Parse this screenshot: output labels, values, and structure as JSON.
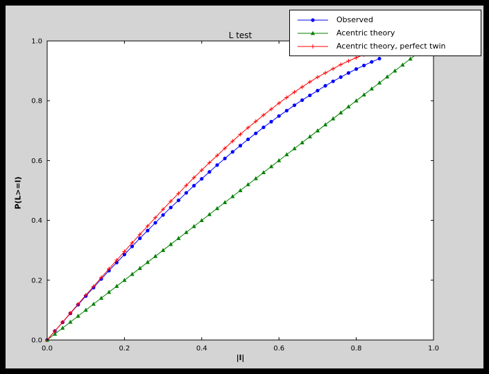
{
  "window": {
    "border_color": "#000000",
    "figure_facecolor": "#d4d4d4",
    "axes_facecolor": "#ffffff"
  },
  "chart_data": {
    "type": "line",
    "title": "L test",
    "xlabel": "|l|",
    "ylabel": "P(L>=l)",
    "xlim": [
      0.0,
      1.0
    ],
    "ylim": [
      0.0,
      1.0
    ],
    "xticks": [
      "0.0",
      "0.2",
      "0.4",
      "0.6",
      "0.8",
      "1.0"
    ],
    "yticks": [
      "0.0",
      "0.2",
      "0.4",
      "0.6",
      "0.8",
      "1.0"
    ],
    "grid": false,
    "legend_position": "upper right",
    "series": [
      {
        "name": "Observed",
        "key": "observed",
        "color": "#0000ff",
        "marker": "circle",
        "x": [
          0.0,
          0.02,
          0.04,
          0.06,
          0.08,
          0.1,
          0.12,
          0.14,
          0.16,
          0.18,
          0.2,
          0.22,
          0.24,
          0.26,
          0.28,
          0.3,
          0.32,
          0.34,
          0.36,
          0.38,
          0.4,
          0.42,
          0.44,
          0.46,
          0.48,
          0.5,
          0.52,
          0.54,
          0.56,
          0.58,
          0.6,
          0.62,
          0.64,
          0.66,
          0.68,
          0.7,
          0.72,
          0.74,
          0.76,
          0.78,
          0.8,
          0.82,
          0.84,
          0.86
        ],
        "y": [
          0.0,
          0.03,
          0.059,
          0.089,
          0.118,
          0.147,
          0.175,
          0.204,
          0.232,
          0.259,
          0.286,
          0.313,
          0.34,
          0.366,
          0.392,
          0.418,
          0.443,
          0.467,
          0.492,
          0.516,
          0.539,
          0.562,
          0.585,
          0.607,
          0.629,
          0.65,
          0.671,
          0.691,
          0.711,
          0.73,
          0.749,
          0.767,
          0.785,
          0.802,
          0.818,
          0.834,
          0.85,
          0.865,
          0.879,
          0.893,
          0.906,
          0.918,
          0.93,
          0.941
        ]
      },
      {
        "name": "Acentric theory",
        "key": "acentric-theory",
        "color": "#008000",
        "marker": "triangle_up",
        "x": [
          0.0,
          0.02,
          0.04,
          0.06,
          0.08,
          0.1,
          0.12,
          0.14,
          0.16,
          0.18,
          0.2,
          0.22,
          0.24,
          0.26,
          0.28,
          0.3,
          0.32,
          0.34,
          0.36,
          0.38,
          0.4,
          0.42,
          0.44,
          0.46,
          0.48,
          0.5,
          0.52,
          0.54,
          0.56,
          0.58,
          0.6,
          0.62,
          0.64,
          0.66,
          0.68,
          0.7,
          0.72,
          0.74,
          0.76,
          0.78,
          0.8,
          0.82,
          0.84,
          0.86,
          0.88,
          0.9,
          0.92,
          0.94,
          0.96
        ],
        "y": [
          0.0,
          0.02,
          0.04,
          0.06,
          0.08,
          0.1,
          0.12,
          0.14,
          0.16,
          0.18,
          0.2,
          0.22,
          0.24,
          0.26,
          0.28,
          0.3,
          0.32,
          0.34,
          0.36,
          0.38,
          0.4,
          0.42,
          0.44,
          0.46,
          0.48,
          0.5,
          0.52,
          0.54,
          0.56,
          0.58,
          0.6,
          0.62,
          0.64,
          0.66,
          0.68,
          0.7,
          0.72,
          0.74,
          0.76,
          0.78,
          0.8,
          0.82,
          0.84,
          0.86,
          0.88,
          0.9,
          0.92,
          0.94,
          0.96
        ]
      },
      {
        "name": "Acentric theory, perfect twin",
        "key": "acentric-theory-perfect-twin",
        "color": "#ff0000",
        "marker": "plus",
        "x": [
          0.0,
          0.02,
          0.04,
          0.06,
          0.08,
          0.1,
          0.12,
          0.14,
          0.16,
          0.18,
          0.2,
          0.22,
          0.24,
          0.26,
          0.28,
          0.3,
          0.32,
          0.34,
          0.36,
          0.38,
          0.4,
          0.42,
          0.44,
          0.46,
          0.48,
          0.5,
          0.52,
          0.54,
          0.56,
          0.58,
          0.6,
          0.62,
          0.64,
          0.66,
          0.68,
          0.7,
          0.72,
          0.74,
          0.76,
          0.78,
          0.8,
          0.82,
          0.84,
          0.86,
          0.88
        ],
        "y": [
          0.0,
          0.03,
          0.06,
          0.09,
          0.12,
          0.15,
          0.179,
          0.209,
          0.238,
          0.267,
          0.296,
          0.325,
          0.353,
          0.381,
          0.409,
          0.437,
          0.464,
          0.49,
          0.517,
          0.543,
          0.568,
          0.593,
          0.617,
          0.641,
          0.665,
          0.688,
          0.71,
          0.731,
          0.752,
          0.772,
          0.792,
          0.811,
          0.829,
          0.846,
          0.863,
          0.879,
          0.893,
          0.907,
          0.921,
          0.933,
          0.944,
          0.954,
          0.964,
          0.972,
          0.979
        ]
      }
    ]
  }
}
